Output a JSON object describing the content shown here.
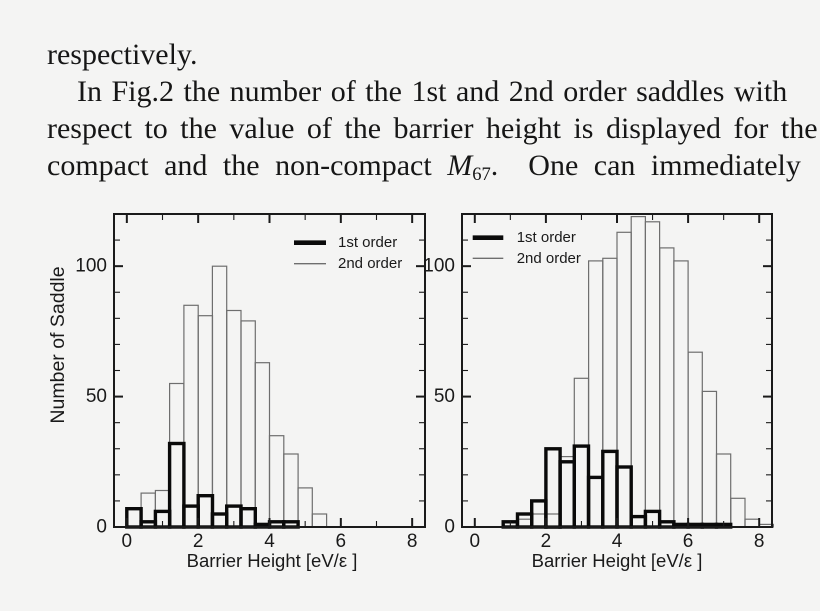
{
  "page": {
    "background": "#f4f4f3",
    "text_color": "#161616"
  },
  "paragraph": {
    "line1": "respectively.",
    "line2": "In Fig.2 the number of the 1st and 2nd order saddles with",
    "line3": "respect to the value of the barrier height is displayed for the",
    "line4_pre": "compact and the non-compact ",
    "line4_m": "M",
    "line4_sub": "67",
    "line4_post": ". One can immediately"
  },
  "styles": {
    "axis_color": "#1a1a1a",
    "thick_color": "#0a0a0a",
    "thin_color": "#6e6e6e"
  },
  "chart_data": [
    {
      "type": "bar",
      "subtype": "outline-histogram",
      "title": "",
      "xlabel": "Barrier Height [eV/ε ]",
      "ylabel": "Number of Saddle",
      "xlim": [
        -0.36,
        8.36
      ],
      "ylim": [
        0,
        120
      ],
      "x_major_ticks": [
        0,
        2,
        4,
        6,
        8
      ],
      "x_minor_ticks": [
        1,
        3,
        5,
        7
      ],
      "y_major_ticks": [
        0,
        50,
        100
      ],
      "y_minor_step": 10,
      "grid": false,
      "bin_start": 0,
      "bin_width": 0.4,
      "legend_position": "top-right",
      "legend": [
        {
          "label": "1st order",
          "style": "thick"
        },
        {
          "label": "2nd order",
          "style": "thin"
        }
      ],
      "series": [
        {
          "name": "1st order",
          "style": "thick",
          "values": [
            7,
            2,
            6,
            32,
            8,
            12,
            5,
            8,
            7,
            1,
            2,
            2,
            0,
            0
          ]
        },
        {
          "name": "2nd order",
          "style": "thin",
          "values": [
            0,
            13,
            14,
            55,
            85,
            81,
            100,
            83,
            79,
            63,
            35,
            28,
            15,
            5
          ]
        }
      ]
    },
    {
      "type": "bar",
      "subtype": "outline-histogram",
      "title": "",
      "xlabel": "Barrier Height [eV/ε ]",
      "ylabel": "",
      "xlim": [
        -0.36,
        8.36
      ],
      "ylim": [
        0,
        120
      ],
      "x_major_ticks": [
        0,
        2,
        4,
        6,
        8
      ],
      "x_minor_ticks": [
        1,
        3,
        5,
        7
      ],
      "y_major_ticks": [
        0,
        50,
        100
      ],
      "y_minor_step": 10,
      "grid": false,
      "bin_start": 0,
      "bin_width": 0.4,
      "legend_position": "top-left",
      "legend": [
        {
          "label": "1st order",
          "style": "thick"
        },
        {
          "label": "2nd order",
          "style": "thin"
        }
      ],
      "series": [
        {
          "name": "1st order",
          "style": "thick",
          "values": [
            0,
            0,
            2,
            5,
            10,
            30,
            25,
            31,
            19,
            29,
            23,
            4,
            6,
            2,
            1,
            1,
            1,
            1,
            0,
            0,
            0
          ]
        },
        {
          "name": "2nd order",
          "style": "thin",
          "values": [
            0,
            0,
            0,
            3,
            5,
            5,
            27,
            57,
            102,
            103,
            113,
            119,
            117,
            107,
            102,
            67,
            52,
            28,
            11,
            3,
            1
          ]
        }
      ]
    }
  ]
}
